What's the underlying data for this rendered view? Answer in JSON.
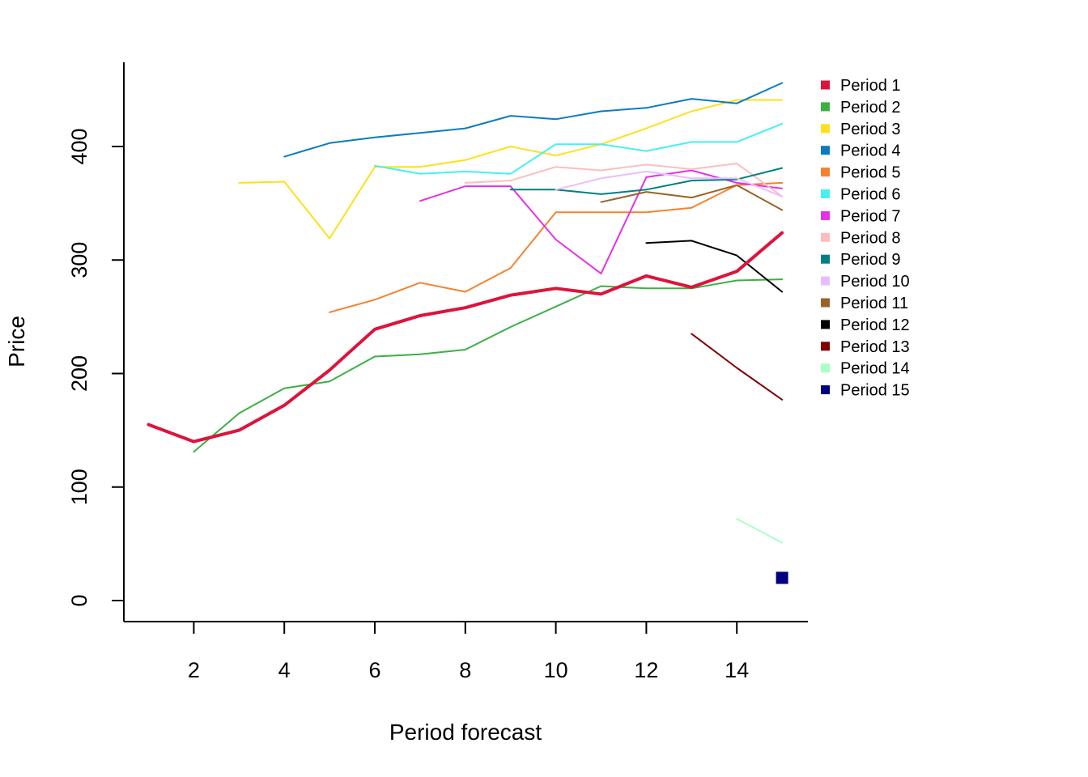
{
  "chart_data": {
    "type": "line",
    "title": "",
    "xlabel": "Period forecast",
    "ylabel": "Price",
    "xlim": [
      1,
      15
    ],
    "ylim": [
      0,
      455
    ],
    "xticks": [
      2,
      4,
      6,
      8,
      10,
      12,
      14
    ],
    "yticks": [
      0,
      100,
      200,
      300,
      400
    ],
    "grid": false,
    "legend_position": "right",
    "series": [
      {
        "name": "Period 1",
        "color": "#DC143C",
        "emphasis": true,
        "x": [
          1,
          2,
          3,
          4,
          5,
          6,
          7,
          8,
          9,
          10,
          11,
          12,
          13,
          14,
          15
        ],
        "y": [
          155,
          140,
          150,
          172,
          203,
          239,
          251,
          258,
          269,
          275,
          270,
          286,
          276,
          290,
          324
        ]
      },
      {
        "name": "Period 2",
        "color": "#3CB044",
        "x": [
          2,
          3,
          4,
          5,
          6,
          7,
          8,
          9,
          10,
          11,
          12,
          13,
          14,
          15
        ],
        "y": [
          131,
          165,
          187,
          193,
          215,
          217,
          221,
          241,
          259,
          277,
          275,
          275,
          282,
          283
        ]
      },
      {
        "name": "Period 3",
        "color": "#FFE01A",
        "x": [
          3,
          4,
          5,
          6,
          7,
          8,
          9,
          10,
          11,
          12,
          13,
          14,
          15
        ],
        "y": [
          368,
          369,
          319,
          382,
          382,
          388,
          400,
          392,
          402,
          416,
          431,
          441,
          441
        ]
      },
      {
        "name": "Period 4",
        "color": "#0B7BC1",
        "x": [
          4,
          5,
          6,
          7,
          8,
          9,
          10,
          11,
          12,
          13,
          14,
          15
        ],
        "y": [
          391,
          403,
          408,
          412,
          416,
          427,
          424,
          431,
          434,
          442,
          438,
          456
        ]
      },
      {
        "name": "Period 5",
        "color": "#F58230",
        "x": [
          5,
          6,
          7,
          8,
          9,
          10,
          11,
          12,
          13,
          14,
          15
        ],
        "y": [
          254,
          265,
          280,
          272,
          293,
          342,
          342,
          342,
          346,
          366,
          368
        ]
      },
      {
        "name": "Period 6",
        "color": "#46F0F0",
        "x": [
          6,
          7,
          8,
          9,
          10,
          11,
          12,
          13,
          14,
          15
        ],
        "y": [
          383,
          376,
          378,
          376,
          402,
          402,
          396,
          404,
          404,
          420
        ]
      },
      {
        "name": "Period 7",
        "color": "#E432E6",
        "x": [
          7,
          8,
          9,
          10,
          11,
          12,
          13,
          14,
          15
        ],
        "y": [
          352,
          365,
          365,
          318,
          288,
          373,
          379,
          368,
          363
        ]
      },
      {
        "name": "Period 8",
        "color": "#FABEBE",
        "x": [
          8,
          9,
          10,
          11,
          12,
          13,
          14,
          15
        ],
        "y": [
          368,
          370,
          382,
          379,
          384,
          380,
          385,
          356
        ]
      },
      {
        "name": "Period 9",
        "color": "#008080",
        "x": [
          9,
          10,
          11,
          12,
          13,
          14,
          15
        ],
        "y": [
          362,
          362,
          358,
          362,
          370,
          371,
          381
        ]
      },
      {
        "name": "Period 10",
        "color": "#E6BEFF",
        "x": [
          10,
          11,
          12,
          13,
          14,
          15
        ],
        "y": [
          362,
          372,
          378,
          372,
          372,
          356
        ]
      },
      {
        "name": "Period 11",
        "color": "#9A6324",
        "x": [
          11,
          12,
          13,
          14,
          15
        ],
        "y": [
          351,
          360,
          355,
          366,
          344
        ]
      },
      {
        "name": "Period 12",
        "color": "#000000",
        "x": [
          12,
          13,
          14,
          15
        ],
        "y": [
          315,
          317,
          304,
          272
        ]
      },
      {
        "name": "Period 13",
        "color": "#800000",
        "x": [
          13,
          14,
          15
        ],
        "y": [
          235,
          205,
          177
        ]
      },
      {
        "name": "Period 14",
        "color": "#AAFFC3",
        "x": [
          14,
          15
        ],
        "y": [
          72,
          51
        ]
      },
      {
        "name": "Period 15",
        "color": "#000080",
        "marker": "square",
        "x": [
          15
        ],
        "y": [
          20
        ]
      }
    ]
  }
}
